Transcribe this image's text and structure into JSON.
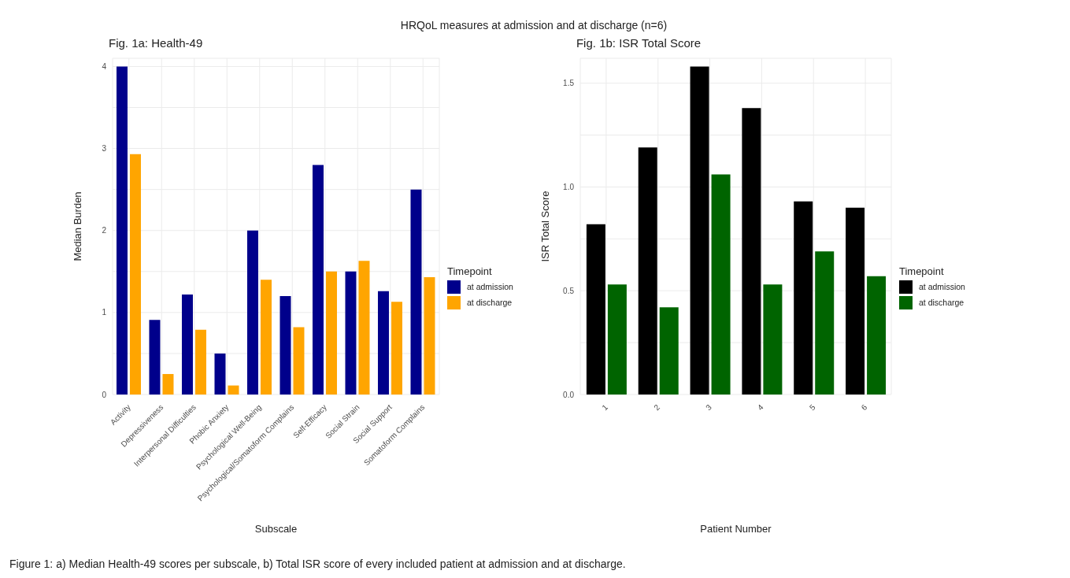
{
  "chart_data": [
    {
      "type": "bar",
      "title": "Fig. 1a: Health-49",
      "xlabel": "Subscale",
      "ylabel": "Median Burden",
      "legend_title": "Timepoint",
      "legend": "right",
      "grid": true,
      "annotations": [
        "HRQoL measures at admission and at discharge (n=6)",
        "Figure 1: a) Median Health-49 scores per subscale, b) Total ISR score of every included patient at admission and at discharge."
      ],
      "categories": [
        "Activity",
        "Depressiveness",
        "Interpersonal Difficulties",
        "Phobic Anxiety",
        "Psychological Well-Being",
        "Psychological/Somatoform Complains",
        "Self-Efficacy",
        "Social Strain",
        "Social Support",
        "Somatoform Complains"
      ],
      "series": [
        {
          "name": "at admission",
          "color": "#00008b",
          "values": [
            4.0,
            0.91,
            1.22,
            0.5,
            2.0,
            1.2,
            2.8,
            1.5,
            1.26,
            2.5
          ]
        },
        {
          "name": "at discharge",
          "color": "#ffa500",
          "values": [
            2.93,
            0.25,
            0.79,
            0.11,
            1.4,
            0.82,
            1.5,
            1.63,
            1.13,
            1.43
          ]
        }
      ],
      "ylim": [
        0,
        4.1
      ],
      "yticks": [
        0,
        {
          "value": 0.5,
          "label": null
        },
        1,
        {
          "value": 1.5,
          "label": null
        },
        2,
        {
          "value": 2.5,
          "label": null
        },
        3,
        {
          "value": 3.5,
          "label": null
        },
        4
      ]
    },
    {
      "type": "bar",
      "title": "Fig. 1b: ISR Total Score",
      "xlabel": "Patient Number",
      "ylabel": "ISR Total Score",
      "legend_title": "Timepoint",
      "legend": "right",
      "grid": true,
      "categories": [
        "1",
        "2",
        "3",
        "4",
        "5",
        "6"
      ],
      "series": [
        {
          "name": "at admission",
          "color": "#000000",
          "values": [
            0.82,
            1.19,
            1.58,
            1.38,
            0.93,
            0.9
          ]
        },
        {
          "name": "at discharge",
          "color": "#006400",
          "values": [
            0.53,
            0.42,
            1.06,
            0.53,
            0.69,
            0.57
          ]
        }
      ],
      "ylim": [
        0,
        1.62
      ],
      "yticks": [
        "0.0",
        {
          "value": 0.25,
          "label": null
        },
        {
          "value": 0.5,
          "label": "0.5"
        },
        {
          "value": 0.75,
          "label": null
        },
        {
          "value": 1,
          "label": "1.0"
        },
        {
          "value": 1.25,
          "label": null
        },
        {
          "value": 1.5,
          "label": "1.5"
        }
      ]
    }
  ]
}
